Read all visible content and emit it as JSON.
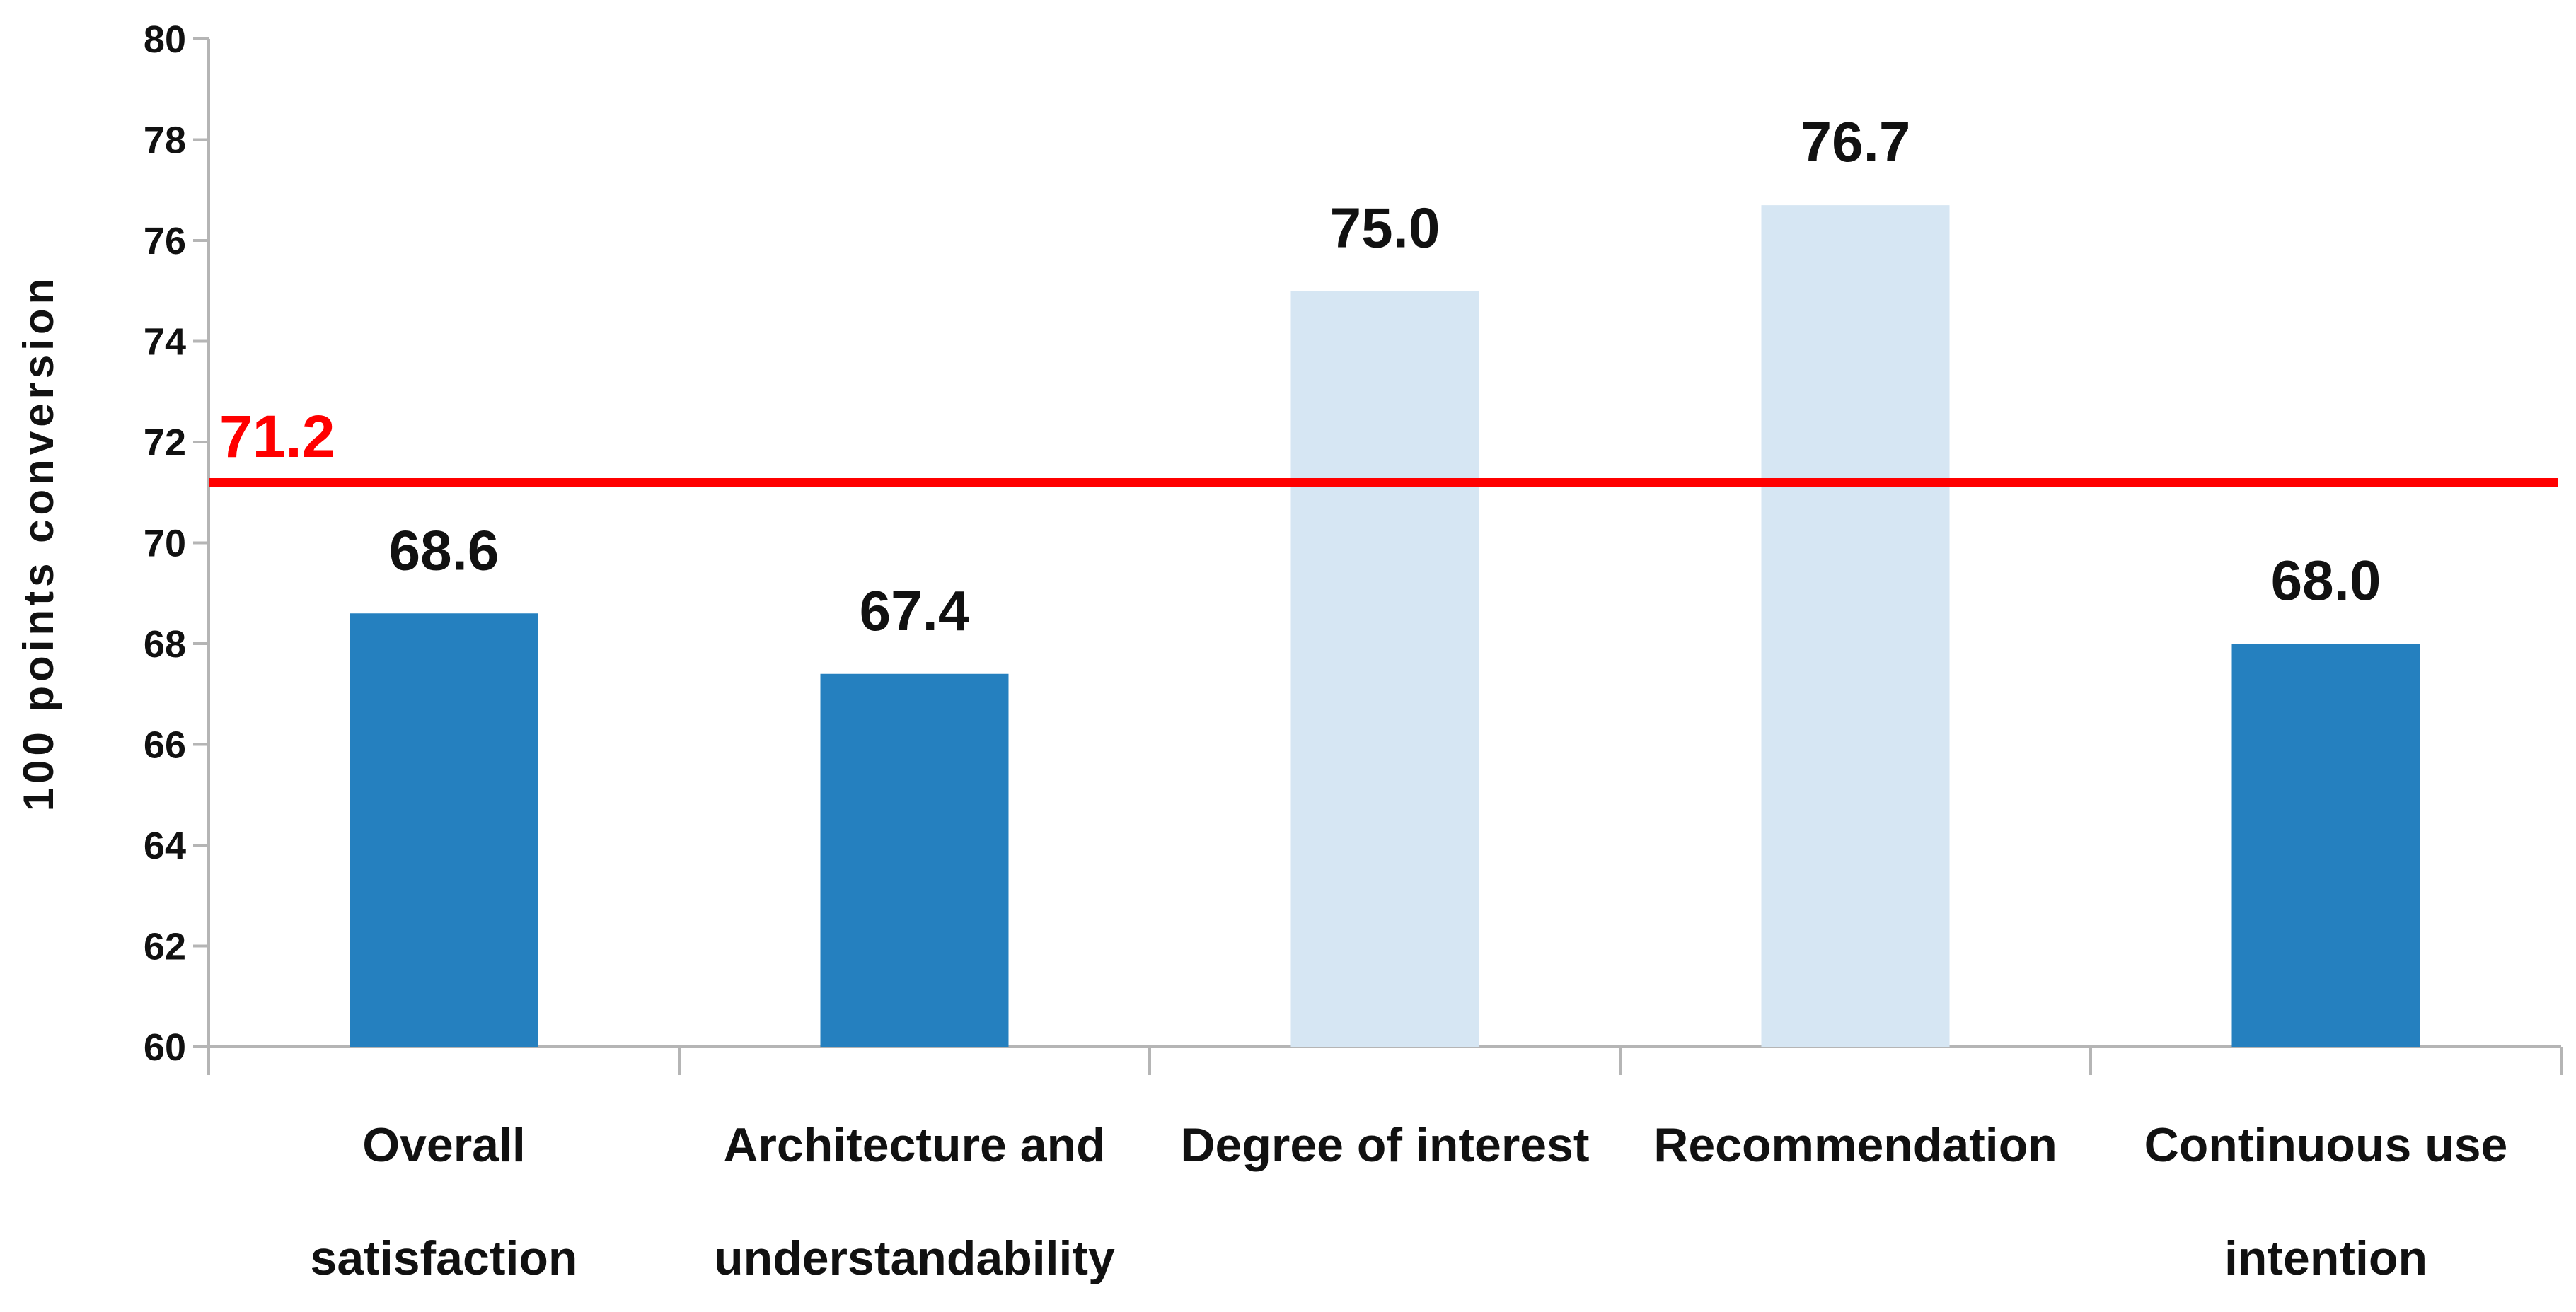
{
  "chart_data": {
    "type": "bar",
    "title": "",
    "xlabel": "",
    "ylabel": "100  points  conversion",
    "ylim": [
      60,
      80
    ],
    "yticks": [
      60,
      62,
      64,
      66,
      68,
      70,
      72,
      74,
      76,
      78,
      80
    ],
    "categories": [
      [
        "Overall",
        "satisfaction"
      ],
      [
        "Architecture and",
        "understandability"
      ],
      [
        "Degree of interest"
      ],
      [
        "Recommendation"
      ],
      [
        "Continuous use",
        "intention"
      ]
    ],
    "values": [
      68.6,
      67.4,
      75.0,
      76.7,
      68.0
    ],
    "value_labels": [
      "68.6",
      "67.4",
      "75.0",
      "76.7",
      "68.0"
    ],
    "bar_colors": [
      "#2580bf",
      "#2580bf",
      "#d6e6f3",
      "#d6e6f3",
      "#2580bf"
    ],
    "reference_line": {
      "value": 71.2,
      "label": "71.2",
      "color": "#ff0000"
    },
    "grid": false,
    "legend": "none"
  }
}
